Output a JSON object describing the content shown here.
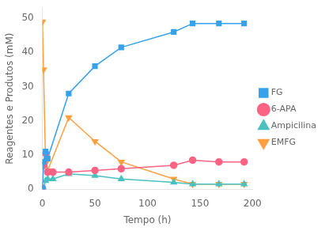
{
  "chart_data": {
    "type": "line",
    "xlabel": "Tempo (h)",
    "ylabel": "Reagentes e Produtos (mM)",
    "xlim": [
      0,
      200
    ],
    "ylim": [
      0,
      53
    ],
    "xticks": [
      0,
      50,
      100,
      150,
      200
    ],
    "yticks": [
      0,
      10,
      20,
      30,
      40,
      50
    ],
    "grid": false,
    "legend": "right",
    "series": [
      {
        "name": "FG",
        "marker": "square",
        "x": [
          0,
          1,
          3,
          5,
          25,
          50,
          75,
          125,
          143,
          168,
          192
        ],
        "values": [
          0.3,
          8.0,
          11.0,
          9.0,
          28.0,
          36.0,
          41.5,
          46.0,
          48.5,
          48.5,
          48.5
        ]
      },
      {
        "name": "6-APA",
        "marker": "circle",
        "x": [
          0,
          1,
          3,
          5,
          10,
          25,
          50,
          75,
          125,
          143,
          168,
          192
        ],
        "values": [
          0.3,
          7.0,
          10.5,
          5.0,
          5.0,
          5.0,
          5.5,
          6.0,
          7.0,
          8.5,
          8.0,
          8.0
        ]
      },
      {
        "name": "Ampicilina",
        "marker": "triangle",
        "x": [
          0,
          1,
          3,
          5,
          10,
          25,
          50,
          75,
          125,
          143,
          168,
          192
        ],
        "values": [
          0.0,
          0.3,
          2.5,
          3.0,
          3.0,
          4.5,
          4.0,
          3.0,
          2.0,
          1.5,
          1.5,
          1.5
        ]
      },
      {
        "name": "EMFG",
        "marker": "triangle-down",
        "x": [
          0,
          1,
          3,
          5,
          25,
          50,
          75,
          125,
          143,
          168,
          192
        ],
        "values": [
          49.0,
          35.0,
          7.5,
          5.5,
          21.0,
          14.0,
          8.0,
          3.0,
          1.5,
          1.5,
          1.5
        ]
      }
    ]
  }
}
